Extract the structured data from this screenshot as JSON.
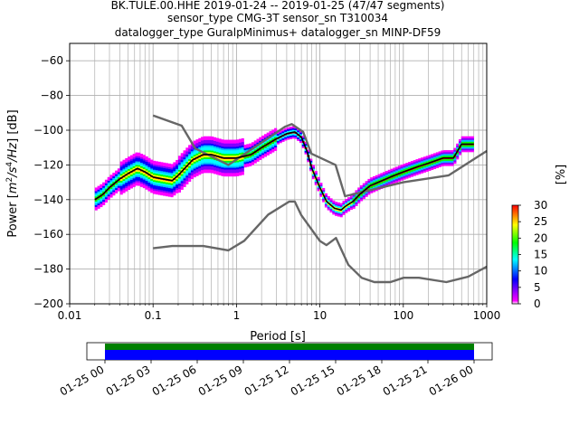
{
  "chart_data": {
    "type": "heatmap",
    "title_lines": [
      "BK.TULE.00.HHE   2019-01-24 -- 2019-01-25  (47/47 segments)",
      "sensor_type CMG-3T sensor_sn T310034",
      "datalogger_type GuralpMinimus+ datalogger_sn MINP-DF59"
    ],
    "xlabel": "Period [s]",
    "ylabel_parts": [
      "Power [",
      "m",
      "2",
      "/s",
      "4",
      "/Hz",
      "] [dB]"
    ],
    "x_scale": "log",
    "xlim": [
      0.01,
      1000
    ],
    "ylim": [
      -200,
      -50
    ],
    "x_ticks": [
      {
        "value": 0.01,
        "label": "0.01"
      },
      {
        "value": 0.1,
        "label": "0.1"
      },
      {
        "value": 1,
        "label": "1"
      },
      {
        "value": 10,
        "label": "10"
      },
      {
        "value": 100,
        "label": "100"
      },
      {
        "value": 1000,
        "label": "1000"
      }
    ],
    "y_ticks": [
      {
        "value": -60,
        "label": "−60"
      },
      {
        "value": -80,
        "label": "−80"
      },
      {
        "value": -100,
        "label": "−100"
      },
      {
        "value": -120,
        "label": "−120"
      },
      {
        "value": -140,
        "label": "−140"
      },
      {
        "value": -160,
        "label": "−160"
      },
      {
        "value": -180,
        "label": "−180"
      },
      {
        "value": -200,
        "label": "−200"
      }
    ],
    "grid": true,
    "colorbar": {
      "label": "[%]",
      "range": [
        0,
        30
      ],
      "ticks": [
        "0",
        "5",
        "10",
        "15",
        "20",
        "25",
        "30"
      ],
      "colors": [
        "#ffffff",
        "#ff00ff",
        "#0000ff",
        "#00ffff",
        "#00ff00",
        "#ffff00",
        "#ff0000"
      ]
    },
    "colors": {
      "noise_model": "#666666",
      "mode_line": "#000000"
    },
    "series": [
      {
        "kind": "high-noise-model",
        "x": [
          0.1,
          0.22,
          0.32,
          0.8,
          3.8,
          4.6,
          6.3,
          7.9,
          15.4,
          20,
          100,
          350,
          1000
        ],
        "y": [
          -91.5,
          -97.4,
          -110.5,
          -120,
          -98,
          -96.5,
          -101,
          -113.5,
          -120,
          -138,
          -130,
          -126,
          -112
        ]
      },
      {
        "kind": "low-noise-model",
        "x": [
          0.1,
          0.17,
          0.4,
          0.8,
          1.24,
          2.4,
          4.3,
          5,
          6,
          10,
          12,
          15.6,
          21.9,
          31.6,
          45,
          70,
          101,
          154,
          328,
          600,
          1000
        ],
        "y": [
          -168,
          -166.7,
          -166.7,
          -169.2,
          -163.7,
          -148.6,
          -141.1,
          -141.1,
          -149,
          -163.8,
          -166.2,
          -162.1,
          -177.5,
          -185,
          -187.5,
          -187.5,
          -185,
          -185,
          -187.5,
          -184.4,
          -178.6
        ]
      },
      {
        "kind": "mode",
        "x": [
          0.02,
          0.025,
          0.03,
          0.04,
          0.05,
          0.065,
          0.08,
          0.1,
          0.13,
          0.17,
          0.2,
          0.25,
          0.3,
          0.4,
          0.5,
          0.7,
          1,
          1.5,
          2,
          3,
          4,
          5,
          6,
          7,
          8,
          10,
          12,
          15,
          18,
          20,
          25,
          30,
          40,
          50,
          70,
          100,
          150,
          200,
          300,
          400,
          500,
          700
        ],
        "y": [
          -140,
          -137,
          -133,
          -128,
          -125,
          -122,
          -124,
          -127,
          -128,
          -129,
          -126,
          -121,
          -117,
          -114,
          -114,
          -116,
          -116,
          -114,
          -110,
          -105,
          -102,
          -101,
          -104,
          -112,
          -122,
          -133,
          -141,
          -145,
          -146,
          -144,
          -141,
          -137,
          -132,
          -130,
          -127,
          -124,
          -121,
          -119,
          -116,
          -116,
          -108,
          -108
        ]
      }
    ],
    "time_axis": {
      "ticks": [
        "01-25 00",
        "01-25 03",
        "01-25 06",
        "01-25 09",
        "01-25 12",
        "01-25 15",
        "01-25 18",
        "01-25 21",
        "01-26 00"
      ],
      "coverage_colors": {
        "data": "#0000ff",
        "gaps_ok": "#008000"
      }
    }
  }
}
